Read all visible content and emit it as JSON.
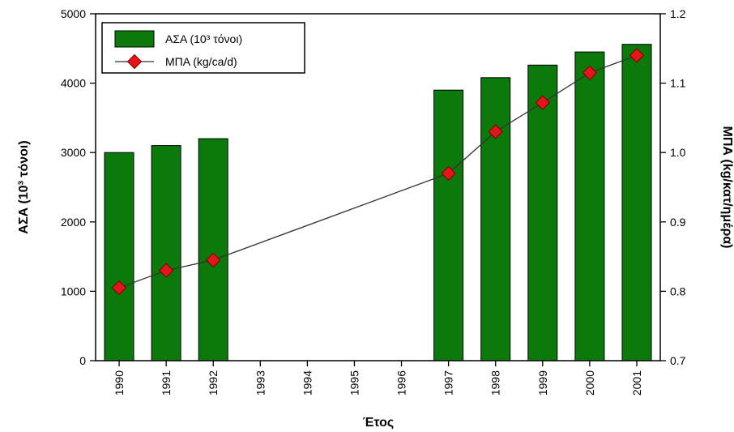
{
  "chart_data": {
    "type": "bar+line",
    "categories": [
      "1990",
      "1991",
      "1992",
      "1993",
      "1994",
      "1995",
      "1996",
      "1997",
      "1998",
      "1999",
      "2000",
      "2001"
    ],
    "xlabel": "Έτος",
    "ylabel_left": "ΑΣΑ (10³ τόνοι)",
    "ylabel_right": "ΜΠΑ (kg/κατ/ημέρα)",
    "ylim_left": [
      0,
      5000
    ],
    "ylim_right": [
      0.7,
      1.2
    ],
    "yticks_left": [
      "0",
      "1000",
      "2000",
      "3000",
      "4000",
      "5000"
    ],
    "yticks_right": [
      "0.7",
      "0.8",
      "0.9",
      "1.0",
      "1.1",
      "1.2"
    ],
    "grid": false,
    "legend": {
      "placement": "top-left",
      "bar_label": "ΑΣΑ (10³ τόνοι)",
      "line_label": "ΜΠΑ (kg/ca/d)"
    },
    "series": [
      {
        "kind": "bar",
        "axis": "left",
        "values": [
          3000,
          3100,
          3200,
          null,
          null,
          null,
          null,
          3900,
          4080,
          4260,
          4450,
          4560
        ]
      },
      {
        "kind": "line",
        "axis": "right",
        "values": [
          0.805,
          0.83,
          0.845,
          null,
          null,
          null,
          null,
          0.97,
          1.03,
          1.072,
          1.115,
          1.14
        ]
      }
    ],
    "colors": {
      "bar_fill": "#0b7a0b",
      "bar_stroke": "#000000",
      "line": "#333333",
      "marker_fill": "#e8141b",
      "marker_stroke": "#7a0000"
    }
  }
}
